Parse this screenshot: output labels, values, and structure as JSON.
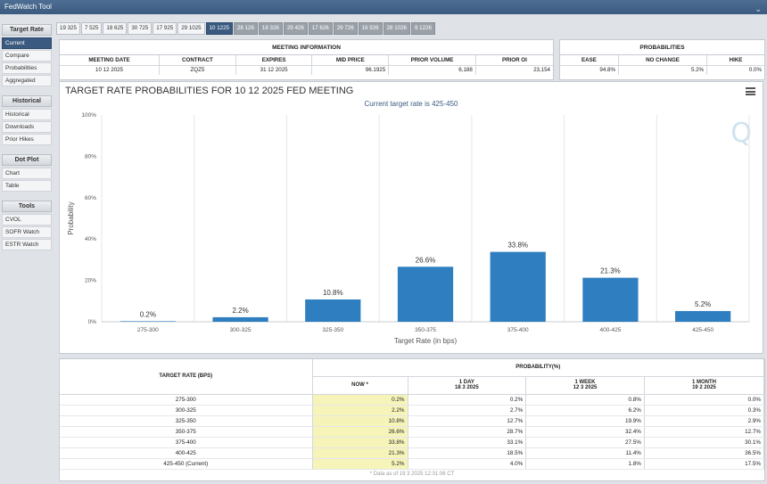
{
  "app": {
    "title": "FedWatch Tool"
  },
  "sidebar": {
    "sections": [
      {
        "header": "Target Rate",
        "items": [
          {
            "label": "Current",
            "active": true
          },
          {
            "label": "Compare"
          },
          {
            "label": "Probabilities"
          },
          {
            "label": "Aggregated"
          }
        ]
      },
      {
        "header": "Historical",
        "items": [
          {
            "label": "Historical"
          },
          {
            "label": "Downloads"
          },
          {
            "label": "Prior Hikes"
          }
        ]
      },
      {
        "header": "Dot Plot",
        "items": [
          {
            "label": "Chart"
          },
          {
            "label": "Table"
          }
        ]
      },
      {
        "header": "Tools",
        "items": [
          {
            "label": "CVOL"
          },
          {
            "label": "SOFR Watch"
          },
          {
            "label": "ESTR Watch"
          }
        ]
      }
    ]
  },
  "date_tabs": [
    {
      "label": "19 325"
    },
    {
      "label": "7 525"
    },
    {
      "label": "18 625"
    },
    {
      "label": "30 725"
    },
    {
      "label": "17 925"
    },
    {
      "label": "29 1025"
    },
    {
      "label": "10 1225",
      "active": true
    },
    {
      "label": "28 126",
      "future": true
    },
    {
      "label": "18 326",
      "future": true
    },
    {
      "label": "29 426",
      "future": true
    },
    {
      "label": "17 626",
      "future": true
    },
    {
      "label": "29 726",
      "future": true
    },
    {
      "label": "16 926",
      "future": true
    },
    {
      "label": "28 1026",
      "future": true
    },
    {
      "label": "9 1226",
      "future": true
    }
  ],
  "meeting_info": {
    "header": "MEETING INFORMATION",
    "columns": [
      "MEETING DATE",
      "CONTRACT",
      "EXPIRES",
      "MID PRICE",
      "PRIOR VOLUME",
      "PRIOR OI"
    ],
    "values": [
      "10 12 2025",
      "ZQZ5",
      "31 12 2025",
      "96.1925",
      "6,188",
      "23,154"
    ]
  },
  "probabilities": {
    "header": "PROBABILITIES",
    "columns": [
      "EASE",
      "NO CHANGE",
      "HIKE"
    ],
    "values": [
      "94.8%",
      "5.2%",
      "0.0%"
    ]
  },
  "chart": {
    "title": "TARGET RATE PROBABILITIES FOR 10 12 2025 FED MEETING",
    "subtitle": "Current target rate is 425-450",
    "logo": "Q"
  },
  "chart_data": {
    "type": "bar",
    "title": "TARGET RATE PROBABILITIES FOR 10 12 2025 FED MEETING",
    "subtitle": "Current target rate is 425-450",
    "xlabel": "Target Rate (in bps)",
    "ylabel": "Probability",
    "categories": [
      "275-300",
      "300-325",
      "325-350",
      "350-375",
      "375-400",
      "400-425",
      "425-450"
    ],
    "values": [
      0.2,
      2.2,
      10.8,
      26.6,
      33.8,
      21.3,
      5.2
    ],
    "data_labels": [
      "0.2%",
      "2.2%",
      "10.8%",
      "26.6%",
      "33.8%",
      "21.3%",
      "5.2%"
    ],
    "yticks": [
      "0%",
      "20%",
      "40%",
      "60%",
      "80%",
      "100%"
    ],
    "ylim": [
      0,
      100
    ],
    "bar_color": "#2f7ebf",
    "grid": "vertical"
  },
  "rate_table": {
    "col_target": "TARGET RATE (BPS)",
    "prob_header": "PROBABILITY(%)",
    "now_label": "NOW *",
    "periods": [
      {
        "label": "1 DAY",
        "date": "18 3 2025"
      },
      {
        "label": "1 WEEK",
        "date": "12 3 2025"
      },
      {
        "label": "1 MONTH",
        "date": "19 2 2025"
      }
    ],
    "rows": [
      {
        "rate": "275-300",
        "now": "0.2%",
        "day": "0.2%",
        "week": "0.8%",
        "month": "0.0%"
      },
      {
        "rate": "300-325",
        "now": "2.2%",
        "day": "2.7%",
        "week": "6.2%",
        "month": "0.3%"
      },
      {
        "rate": "325-350",
        "now": "10.8%",
        "day": "12.7%",
        "week": "19.9%",
        "month": "2.9%"
      },
      {
        "rate": "350-375",
        "now": "26.6%",
        "day": "28.7%",
        "week": "32.4%",
        "month": "12.7%"
      },
      {
        "rate": "375-400",
        "now": "33.8%",
        "day": "33.1%",
        "week": "27.5%",
        "month": "30.1%"
      },
      {
        "rate": "400-425",
        "now": "21.3%",
        "day": "18.5%",
        "week": "11.4%",
        "month": "36.5%"
      },
      {
        "rate": "425-450 (Current)",
        "now": "5.2%",
        "day": "4.0%",
        "week": "1.8%",
        "month": "17.5%"
      }
    ],
    "note": "* Data as of 19 3 2025 12:31:06 CT"
  }
}
